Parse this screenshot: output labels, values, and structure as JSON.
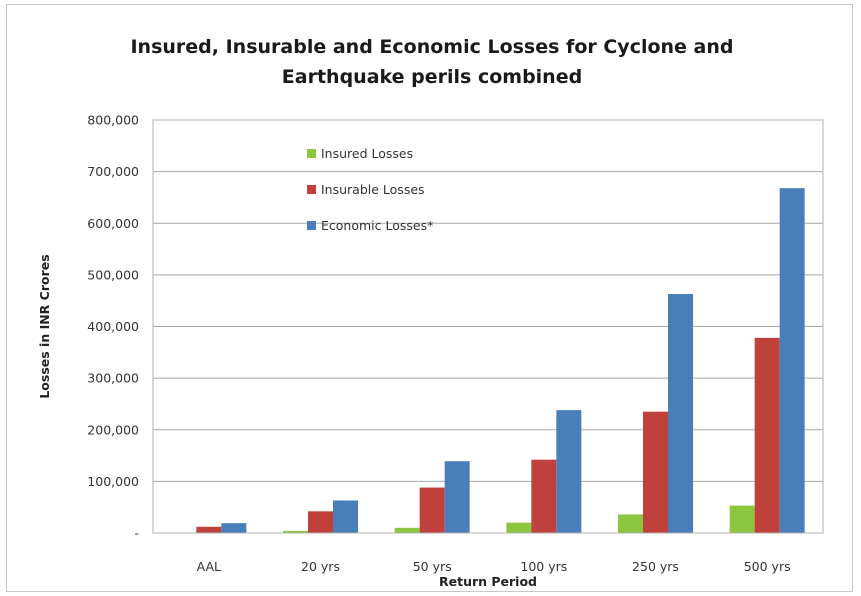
{
  "chart_data": {
    "type": "bar",
    "title_lines": [
      "Insured, Insurable and Economic Losses for Cyclone and",
      "Earthquake perils combined"
    ],
    "xlabel": "Return Period",
    "ylabel": "Losses in INR Crores",
    "categories": [
      "AAL",
      "20 yrs",
      "50 yrs",
      "100 yrs",
      "250 yrs",
      "500 yrs"
    ],
    "ylim": [
      0,
      800000
    ],
    "yticks": [
      0,
      100000,
      200000,
      300000,
      400000,
      500000,
      600000,
      700000,
      800000
    ],
    "ytick_labels": [
      "-",
      "100,000",
      "200,000",
      "300,000",
      "400,000",
      "500,000",
      "600,000",
      "700,000",
      "800,000"
    ],
    "grid": true,
    "legend_position": "top-left-inside",
    "series": [
      {
        "name": "Insured Losses",
        "color": "#8cc63f",
        "values": [
          1000,
          4000,
          10000,
          20000,
          36000,
          53000
        ]
      },
      {
        "name": "Insurable Losses",
        "color": "#c0403c",
        "values": [
          12000,
          42000,
          88000,
          142000,
          235000,
          378000
        ]
      },
      {
        "name": "Economic Losses*",
        "color": "#4a7ebb",
        "values": [
          19000,
          63000,
          139000,
          238000,
          463000,
          668000
        ]
      }
    ]
  }
}
